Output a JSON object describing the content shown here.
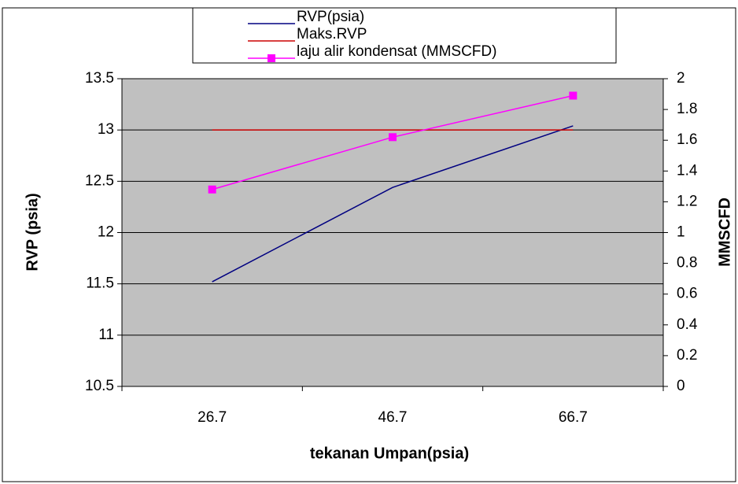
{
  "chart_data": {
    "type": "line",
    "x_label": "tekanan Umpan(psia)",
    "y_label": "RVP (psia)",
    "y2_label": "MMSCFD",
    "categories": [
      "26.7",
      "46.7",
      "66.7"
    ],
    "series": [
      {
        "name": "RVP(psia)",
        "color": "#000080",
        "values": [
          11.52,
          12.44,
          13.04
        ]
      },
      {
        "name": "Maks.RVP",
        "color": "#cc0000",
        "values": [
          13,
          13,
          13
        ]
      },
      {
        "name": "laju alir kondensat (MMSCFD)",
        "color": "#ff00ff",
        "marker": "square",
        "axis": "y2",
        "values": [
          1.28,
          1.62,
          1.89
        ]
      }
    ],
    "ylim": [
      10.5,
      13.5
    ],
    "yticks": [
      10.5,
      11,
      11.5,
      12,
      12.5,
      13,
      13.5
    ],
    "y2lim": [
      0,
      2
    ],
    "y2ticks": [
      0,
      0.2,
      0.4,
      0.6,
      0.8,
      1,
      1.2,
      1.4,
      1.6,
      1.8,
      2
    ],
    "grid": true,
    "legend": "top"
  }
}
